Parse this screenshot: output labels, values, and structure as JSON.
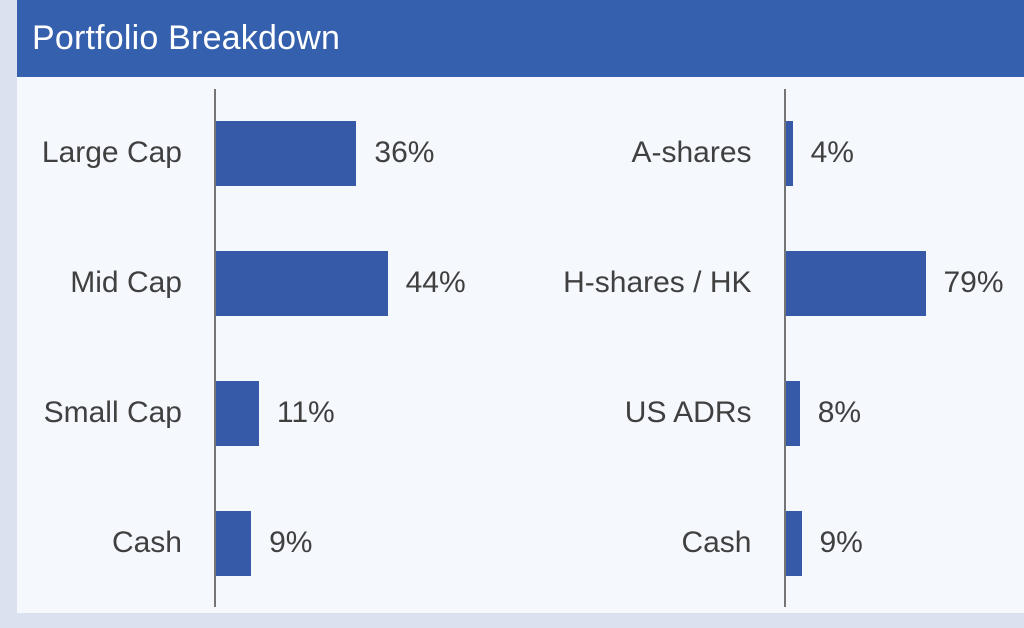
{
  "slide": {
    "title": "Portfolio Breakdown"
  },
  "colors": {
    "outer_bg": "#dbe1ee",
    "header_bg": "#3560ad",
    "panel_bg": "#f5f8fd",
    "bar_fill": "#3659a8",
    "text": "#404040",
    "axis": "#757575",
    "title_text": "#ffffff"
  },
  "chart_data": [
    {
      "type": "bar",
      "orientation": "horizontal",
      "title": "",
      "categories": [
        "Large Cap",
        "Mid Cap",
        "Small Cap",
        "Cash"
      ],
      "values": [
        36,
        44,
        11,
        9
      ],
      "data_labels": [
        "36%",
        "44%",
        "11%",
        "9%"
      ],
      "unit": "%",
      "xlim": [
        0,
        50
      ],
      "grid": false,
      "legend": false,
      "axis_line": "left-vertical"
    },
    {
      "type": "bar",
      "orientation": "horizontal",
      "title": "",
      "categories": [
        "A-shares",
        "H-shares / HK",
        "US ADRs",
        "Cash"
      ],
      "values": [
        4,
        79,
        8,
        9
      ],
      "data_labels": [
        "4%",
        "79%",
        "8%",
        "9%"
      ],
      "unit": "%",
      "xlim": [
        0,
        110
      ],
      "grid": false,
      "legend": false,
      "axis_line": "left-vertical"
    }
  ]
}
